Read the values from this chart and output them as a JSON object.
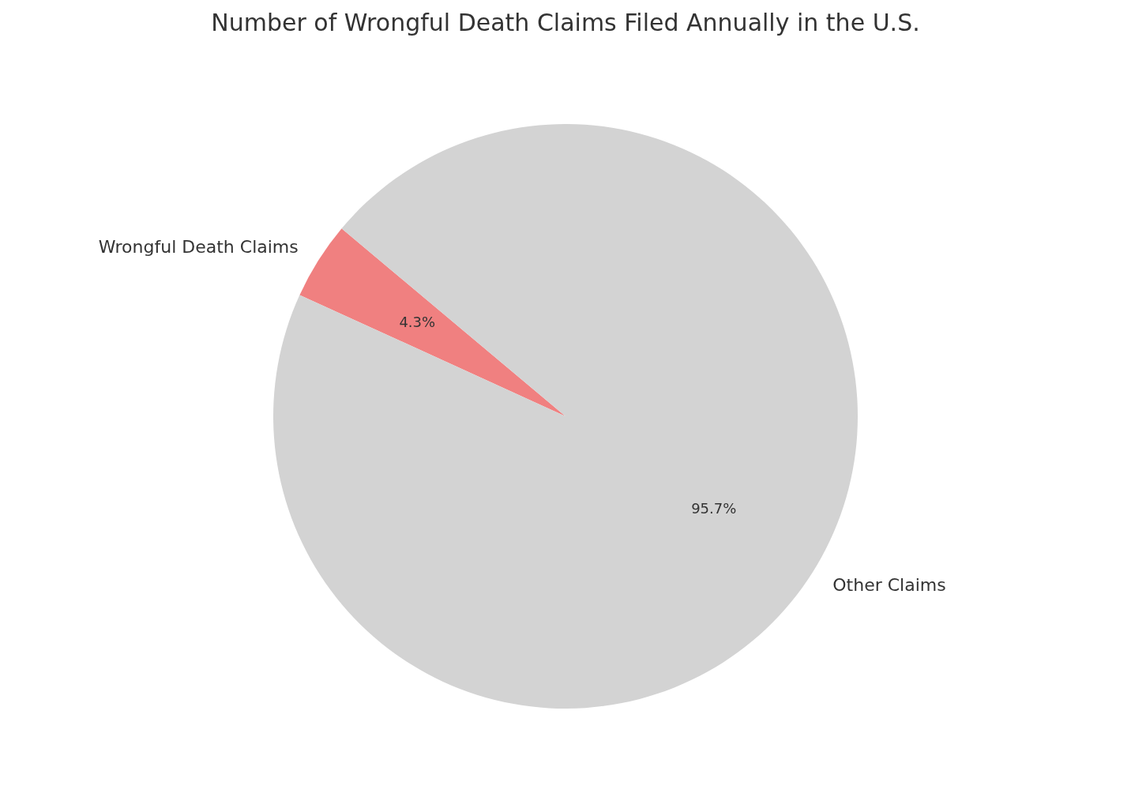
{
  "chart_data": {
    "type": "pie",
    "title": "Number of Wrongful Death Claims Filed Annually in the U.S.",
    "categories": [
      "Wrongful Death Claims",
      "Other Claims"
    ],
    "values": [
      4.3,
      95.7
    ],
    "colors": [
      "#f08080",
      "#d3d3d3"
    ],
    "value_labels": [
      "4.3%",
      "95.7%"
    ],
    "legend": false
  }
}
